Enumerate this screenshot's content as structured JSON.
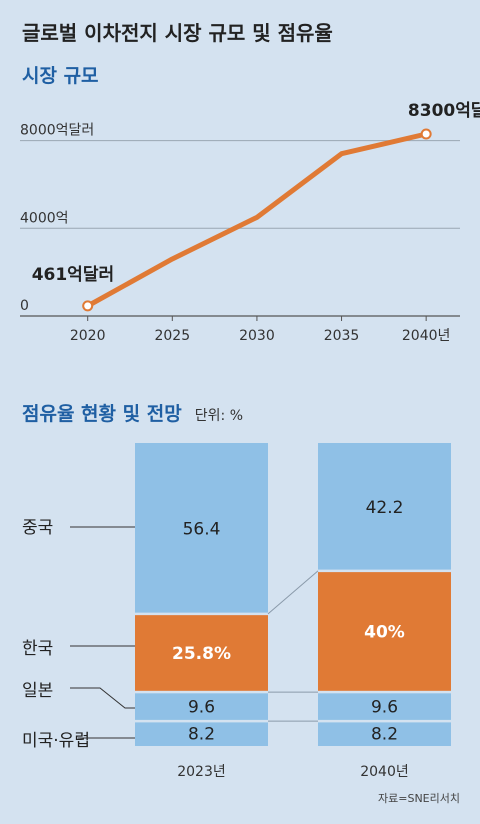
{
  "title": "글로벌 이차전지 시장 규모 및 점유율",
  "source": "자료=SNE리서치",
  "colors": {
    "background": "#d4e2f0",
    "line": "#e07a35",
    "china": "#8fc0e6",
    "korea": "#e07a35",
    "japan": "#8fc0e6",
    "usa_eu": "#8fc0e6",
    "section_title": "#1f5fa3"
  },
  "chart_data": [
    {
      "type": "line",
      "title": "시장 규모",
      "y_tick_labels": [
        "0",
        "4000억",
        "8000억달러"
      ],
      "y_tick_values": [
        0,
        4000,
        8000
      ],
      "ylim": [
        0,
        8300
      ],
      "x_tick_labels": [
        "2020",
        "2025",
        "2030",
        "2035",
        "2040년"
      ],
      "x_tick_values": [
        2020,
        2025,
        2030,
        2035,
        2040
      ],
      "xlim": [
        2016,
        2042
      ],
      "grid": true,
      "series": [
        {
          "x": [
            2020,
            2025,
            2030,
            2035,
            2040
          ],
          "y": [
            461,
            2600,
            4500,
            7400,
            8300
          ]
        }
      ],
      "annotations": [
        {
          "label": "461억달러",
          "x": 2020,
          "y": 461
        },
        {
          "label": "8300억달러",
          "x": 2040,
          "y": 8300
        }
      ]
    },
    {
      "type": "bar",
      "stacked": true,
      "title": "점유율 현황 및 전망",
      "unit": "단위: %",
      "categories": [
        "2023년",
        "2040년"
      ],
      "ylim": [
        0,
        100
      ],
      "series": [
        {
          "name": "미국·유럽",
          "values": [
            8.2,
            8.2
          ],
          "labels": [
            "8.2",
            "8.2"
          ]
        },
        {
          "name": "일본",
          "values": [
            9.6,
            9.6
          ],
          "labels": [
            "9.6",
            "9.6"
          ]
        },
        {
          "name": "한국",
          "values": [
            25.8,
            40
          ],
          "labels": [
            "25.8%",
            "40%"
          ]
        },
        {
          "name": "중국",
          "values": [
            56.4,
            42.2
          ],
          "labels": [
            "56.4",
            "42.2"
          ]
        }
      ]
    }
  ]
}
